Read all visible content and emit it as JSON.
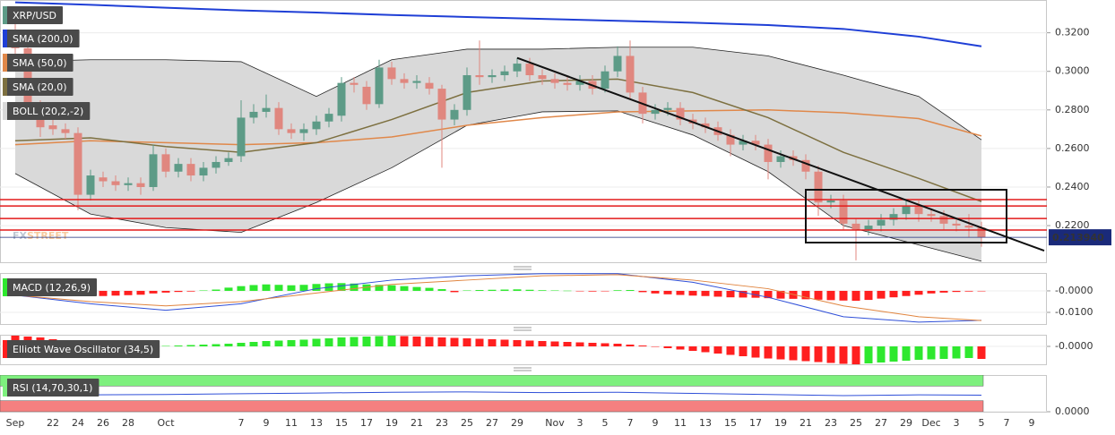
{
  "chart_data": [
    {
      "type": "candlestick",
      "title": "XRP/USD",
      "up_color": "#5d9b87",
      "down_color": "#e0877f",
      "categories": [
        "Sep",
        null,
        null,
        "22",
        null,
        "24",
        null,
        "26",
        null,
        "28",
        null,
        null,
        "Oct",
        null,
        null,
        null,
        null,
        null,
        "7",
        null,
        "9",
        null,
        "11",
        null,
        "13",
        null,
        "15",
        null,
        "17",
        null,
        "19",
        null,
        "21",
        null,
        "23",
        null,
        "25",
        null,
        "27",
        null,
        "29",
        null,
        null,
        "Nov",
        null,
        "3",
        null,
        "5",
        null,
        "7",
        null,
        "9",
        null,
        "11",
        null,
        "13",
        null,
        "15",
        null,
        "17",
        null,
        "19",
        null,
        "21",
        null,
        "23",
        null,
        "25",
        null,
        "27",
        null,
        "29",
        null,
        "Dec",
        null,
        "3",
        null,
        "5",
        null,
        "7",
        null,
        "9"
      ],
      "open": [
        0.318,
        0.312,
        0.282,
        0.272,
        0.27,
        0.268,
        0.236,
        0.245,
        0.243,
        0.241,
        0.242,
        0.24,
        0.257,
        0.248,
        0.252,
        0.246,
        0.25,
        0.253,
        0.256,
        0.276,
        0.279,
        0.281,
        0.27,
        0.268,
        0.27,
        0.274,
        0.277,
        0.294,
        0.292,
        0.283,
        0.302,
        0.296,
        0.294,
        0.294,
        0.291,
        0.275,
        0.28,
        0.298,
        0.297,
        0.298,
        0.3,
        0.304,
        0.298,
        0.296,
        0.294,
        0.293,
        0.295,
        0.291,
        0.3,
        0.308,
        0.289,
        0.278,
        0.28,
        0.281,
        0.275,
        0.273,
        0.271,
        0.267,
        0.262,
        0.264,
        0.262,
        0.253,
        0.256,
        0.254,
        0.248,
        0.232,
        0.233,
        0.221,
        0.218,
        0.22,
        0.223,
        0.226,
        0.23,
        0.226,
        0.225,
        0.221,
        0.22,
        0.219,
        null,
        null,
        null,
        null
      ],
      "high": [
        0.325,
        0.315,
        0.285,
        0.275,
        0.273,
        0.271,
        0.249,
        0.248,
        0.246,
        0.245,
        0.245,
        0.262,
        0.26,
        0.255,
        0.255,
        0.253,
        0.256,
        0.258,
        0.285,
        0.283,
        0.288,
        0.284,
        0.273,
        0.273,
        0.277,
        0.281,
        0.297,
        0.297,
        0.295,
        0.306,
        0.305,
        0.299,
        0.298,
        0.297,
        0.293,
        0.283,
        0.302,
        0.316,
        0.301,
        0.303,
        0.307,
        0.307,
        0.301,
        0.299,
        0.297,
        0.298,
        0.298,
        0.303,
        0.313,
        0.316,
        0.292,
        0.283,
        0.284,
        0.284,
        0.278,
        0.276,
        0.274,
        0.27,
        0.267,
        0.267,
        0.265,
        0.259,
        0.259,
        0.257,
        0.251,
        0.236,
        0.236,
        0.224,
        0.223,
        0.226,
        0.229,
        0.233,
        0.233,
        0.229,
        0.228,
        0.224,
        0.226,
        0.222,
        null,
        null,
        null,
        null
      ],
      "low": [
        0.308,
        0.279,
        0.266,
        0.267,
        0.265,
        0.228,
        0.233,
        0.24,
        0.238,
        0.238,
        0.236,
        0.238,
        0.245,
        0.245,
        0.243,
        0.243,
        0.247,
        0.251,
        0.253,
        0.273,
        0.276,
        0.267,
        0.265,
        0.264,
        0.267,
        0.271,
        0.274,
        0.289,
        0.28,
        0.281,
        0.293,
        0.291,
        0.291,
        0.288,
        0.25,
        0.272,
        0.277,
        0.293,
        0.294,
        0.295,
        0.297,
        0.295,
        0.293,
        0.291,
        0.29,
        0.29,
        0.288,
        0.289,
        0.297,
        0.286,
        0.273,
        0.275,
        0.277,
        0.272,
        0.27,
        0.268,
        0.264,
        0.256,
        0.259,
        0.259,
        0.244,
        0.25,
        0.251,
        0.244,
        0.225,
        0.229,
        0.218,
        0.202,
        0.215,
        0.217,
        0.22,
        0.223,
        0.222,
        0.222,
        0.218,
        0.217,
        0.214,
        0.209,
        null,
        null,
        null,
        null
      ],
      "close": [
        0.312,
        0.282,
        0.271,
        0.27,
        0.268,
        0.236,
        0.246,
        0.243,
        0.241,
        0.242,
        0.24,
        0.257,
        0.248,
        0.252,
        0.246,
        0.25,
        0.253,
        0.255,
        0.276,
        0.279,
        0.281,
        0.27,
        0.268,
        0.27,
        0.274,
        0.278,
        0.294,
        0.293,
        0.283,
        0.302,
        0.296,
        0.294,
        0.295,
        0.291,
        0.275,
        0.28,
        0.298,
        0.297,
        0.298,
        0.3,
        0.304,
        0.298,
        0.296,
        0.294,
        0.293,
        0.295,
        0.291,
        0.3,
        0.308,
        0.289,
        0.278,
        0.28,
        0.281,
        0.275,
        0.273,
        0.271,
        0.267,
        0.262,
        0.264,
        0.262,
        0.253,
        0.256,
        0.254,
        0.248,
        0.232,
        0.233,
        0.221,
        0.218,
        0.22,
        0.223,
        0.226,
        0.23,
        0.226,
        0.225,
        0.221,
        0.22,
        0.219,
        0.2139,
        null,
        null,
        null,
        null
      ],
      "ylim": [
        0.201,
        0.337
      ],
      "yticks": [
        {
          "value": 0.22,
          "label": "0.2200"
        },
        {
          "value": 0.24,
          "label": "0.2400"
        },
        {
          "value": 0.26,
          "label": "0.2600"
        },
        {
          "value": 0.28,
          "label": "0.2800"
        },
        {
          "value": 0.3,
          "label": "0.3000"
        },
        {
          "value": 0.32,
          "label": "0.3200"
        }
      ],
      "overlays": [
        {
          "name": "SMA (200,0)",
          "color": "#1f3fd6",
          "x": [
            0,
            6,
            12,
            18,
            24,
            30,
            36,
            42,
            48,
            54,
            60,
            66,
            72,
            77
          ],
          "values": [
            0.3358,
            0.3345,
            0.333,
            0.3316,
            0.3305,
            0.3292,
            0.3282,
            0.3272,
            0.3262,
            0.3252,
            0.324,
            0.322,
            0.318,
            0.313
          ]
        },
        {
          "name": "SMA (50,0)",
          "color": "#e0884a",
          "x": [
            0,
            6,
            12,
            18,
            24,
            30,
            36,
            42,
            48,
            54,
            60,
            66,
            72,
            77
          ],
          "values": [
            0.262,
            0.264,
            0.263,
            0.262,
            0.263,
            0.266,
            0.272,
            0.276,
            0.279,
            0.2795,
            0.28,
            0.2785,
            0.2755,
            0.2665
          ]
        },
        {
          "name": "SMA (20,0)",
          "color": "#7d7040",
          "x": [
            0,
            6,
            12,
            18,
            24,
            30,
            36,
            42,
            48,
            54,
            60,
            66,
            72,
            77
          ],
          "values": [
            0.264,
            0.2655,
            0.261,
            0.258,
            0.263,
            0.275,
            0.289,
            0.295,
            0.296,
            0.289,
            0.276,
            0.258,
            0.2445,
            0.2325
          ]
        }
      ],
      "bands": {
        "name": "BOLL (20,2,-2)",
        "color": "#222222",
        "fill": "#d9d9d9",
        "x": [
          0,
          6,
          12,
          18,
          24,
          30,
          36,
          42,
          48,
          54,
          60,
          66,
          72,
          77
        ],
        "upper": [
          0.305,
          0.306,
          0.306,
          0.305,
          0.287,
          0.306,
          0.3115,
          0.3115,
          0.3125,
          0.3125,
          0.308,
          0.298,
          0.287,
          0.2645
        ],
        "lower": [
          0.247,
          0.226,
          0.219,
          0.2165,
          0.232,
          0.25,
          0.272,
          0.279,
          0.2795,
          0.267,
          0.248,
          0.22,
          0.21,
          0.2015
        ]
      },
      "levels": {
        "color": "#e31a1a",
        "values": [
          0.2335,
          0.2302,
          0.2237,
          0.2177
        ]
      },
      "price_marker": {
        "value": 0.21394,
        "label": "0.213940",
        "color": "#1a2a7a"
      },
      "trendline": {
        "color": "#111111",
        "x": [
          40,
          82
        ],
        "values": [
          0.307,
          0.207
        ]
      },
      "box": {
        "color": "#111111",
        "x": [
          63,
          79
        ],
        "values": [
          0.2112,
          0.2386
        ]
      },
      "watermark": [
        "FX",
        "STREET"
      ]
    },
    {
      "type": "macd",
      "title": "MACD (12,26,9)",
      "up_color": "#2ee82e",
      "down_color": "#ff1f1f",
      "histogram": [
        -0.0005,
        -0.001,
        -0.0015,
        -0.002,
        -0.0022,
        -0.0025,
        -0.0025,
        -0.0024,
        -0.0022,
        -0.002,
        -0.0018,
        -0.0012,
        -0.0008,
        -0.0005,
        -0.0003,
        0.0002,
        0.0006,
        0.0015,
        0.0022,
        0.0027,
        0.003,
        0.0028,
        0.0026,
        0.0028,
        0.0032,
        0.0035,
        0.0036,
        0.0034,
        0.003,
        0.0028,
        0.0026,
        0.0022,
        0.0018,
        0.0014,
        0.0008,
        -0.0006,
        0.0002,
        0.0004,
        0.0005,
        0.0006,
        0.0007,
        0.0005,
        0.0003,
        0.0002,
        0.0001,
        -0.0002,
        -0.0003,
        -0.0001,
        0.0003,
        0.0004,
        -0.0006,
        -0.0012,
        -0.0016,
        -0.0019,
        -0.0022,
        -0.0024,
        -0.0027,
        -0.003,
        -0.0031,
        -0.0032,
        -0.0034,
        -0.0036,
        -0.0037,
        -0.0039,
        -0.0041,
        -0.0043,
        -0.0045,
        -0.0046,
        -0.0042,
        -0.0036,
        -0.003,
        -0.0024,
        -0.0018,
        -0.0012,
        -0.0008,
        -0.0005,
        -0.0003,
        -0.0001,
        null,
        null,
        null,
        null
      ],
      "lines": [
        {
          "color": "#2f4fd8",
          "x": [
            0,
            6,
            12,
            18,
            24,
            30,
            36,
            42,
            48,
            54,
            60,
            66,
            72,
            77
          ],
          "values": [
            -0.002,
            -0.006,
            -0.009,
            -0.006,
            0.001,
            0.005,
            0.007,
            0.008,
            0.008,
            0.004,
            -0.003,
            -0.012,
            -0.0145,
            -0.0137
          ]
        },
        {
          "color": "#e0843e",
          "x": [
            0,
            6,
            12,
            18,
            24,
            30,
            36,
            42,
            48,
            54,
            60,
            66,
            72,
            77
          ],
          "values": [
            -0.002,
            -0.005,
            -0.007,
            -0.005,
            -0.001,
            0.003,
            0.005,
            0.007,
            0.0075,
            0.005,
            0.001,
            -0.007,
            -0.012,
            -0.0138
          ]
        }
      ],
      "ylim": [
        -0.0154,
        0.0083
      ],
      "yticks": [
        {
          "value": 0,
          "label": "-0.0000"
        },
        {
          "value": -0.01,
          "label": "-0.0100"
        }
      ]
    },
    {
      "type": "ewo",
      "title": "Elliott Wave Oscillator (34,5)",
      "up_color": "#2ee82e",
      "down_color": "#ff1f1f",
      "values": [
        0.024,
        0.022,
        0.02,
        0.016,
        0.01,
        0.004,
        0.001,
        -0.001,
        -0.002,
        -0.001,
        -0.0005,
        0.0005,
        0.001,
        0.002,
        0.003,
        0.004,
        0.005,
        0.006,
        0.008,
        0.01,
        0.012,
        0.013,
        0.014,
        0.015,
        0.017,
        0.018,
        0.02,
        0.021,
        0.022,
        0.023,
        0.024,
        0.023,
        0.022,
        0.021,
        0.02,
        0.019,
        0.018,
        0.017,
        0.016,
        0.015,
        0.014,
        0.013,
        0.012,
        0.011,
        0.01,
        0.009,
        0.008,
        0.007,
        0.006,
        0.004,
        0.002,
        -0.001,
        -0.004,
        -0.007,
        -0.01,
        -0.013,
        -0.016,
        -0.019,
        -0.022,
        -0.025,
        -0.027,
        -0.029,
        -0.031,
        -0.033,
        -0.035,
        -0.037,
        -0.039,
        -0.04,
        -0.038,
        -0.036,
        -0.034,
        -0.032,
        -0.03,
        -0.029,
        -0.028,
        -0.027,
        -0.026,
        -0.028,
        null,
        null,
        null,
        null
      ],
      "ylim": [
        -0.04,
        0.026
      ],
      "yticks": [
        {
          "value": 0,
          "label": "-0.0000"
        }
      ]
    },
    {
      "type": "rsi",
      "title": "RSI (14,70,30,1)",
      "color": "#2f4fd8",
      "x": [
        0,
        6,
        12,
        18,
        24,
        30,
        36,
        42,
        48,
        54,
        60,
        66,
        72,
        77
      ],
      "values": [
        48,
        46,
        47,
        49,
        51,
        53,
        54,
        52,
        53,
        50,
        47,
        44,
        46,
        45
      ],
      "overbought_band": {
        "range": [
          70,
          100
        ],
        "color": "#7ef07e"
      },
      "oversold_band": {
        "range": [
          0,
          30
        ],
        "color": "#f58080"
      },
      "ylim": [
        0,
        100
      ],
      "yticks": [
        {
          "value": 0,
          "label": "0.0000"
        }
      ]
    }
  ]
}
